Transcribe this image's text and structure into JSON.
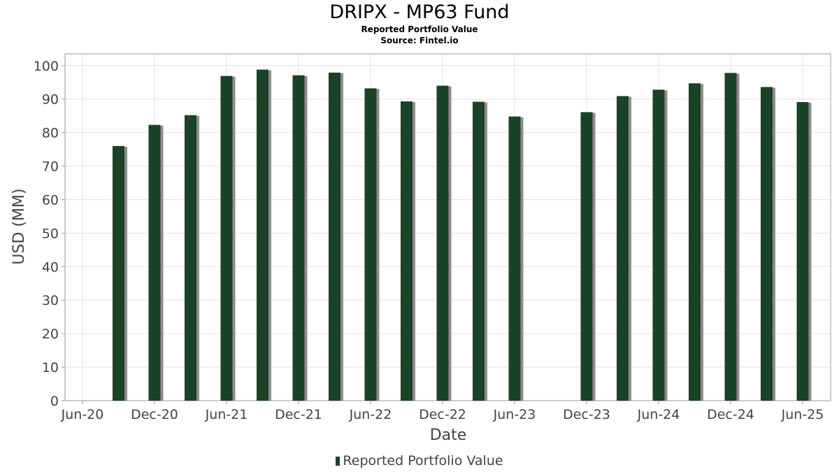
{
  "chart_data": {
    "type": "bar",
    "title": "DRIPX - MP63 Fund",
    "subtitle": "Reported Portfolio Value",
    "source": "Source: Fintel.io",
    "xlabel": "Date",
    "ylabel": "USD (MM)",
    "x_ticks": [
      "Jun-20",
      "Dec-20",
      "Jun-21",
      "Dec-21",
      "Jun-22",
      "Dec-22",
      "Jun-23",
      "Dec-23",
      "Jun-24",
      "Dec-24",
      "Jun-25"
    ],
    "y_ticks": [
      0,
      10,
      20,
      30,
      40,
      50,
      60,
      70,
      80,
      90,
      100
    ],
    "ylim": [
      0,
      103.5
    ],
    "grid": true,
    "legend": "bottom",
    "series": [
      {
        "name": "Reported Portfolio Value",
        "color": "#1a4224",
        "points": [
          {
            "date": "2020-09",
            "value": 76.0
          },
          {
            "date": "2020-12",
            "value": 82.3
          },
          {
            "date": "2021-03",
            "value": 85.2
          },
          {
            "date": "2021-06",
            "value": 96.9
          },
          {
            "date": "2021-09",
            "value": 98.8
          },
          {
            "date": "2021-12",
            "value": 97.1
          },
          {
            "date": "2022-03",
            "value": 97.9
          },
          {
            "date": "2022-06",
            "value": 93.2
          },
          {
            "date": "2022-09",
            "value": 89.3
          },
          {
            "date": "2022-12",
            "value": 94.0
          },
          {
            "date": "2023-03",
            "value": 89.2
          },
          {
            "date": "2023-06",
            "value": 84.8
          },
          {
            "date": "2023-12",
            "value": 86.1
          },
          {
            "date": "2024-03",
            "value": 90.9
          },
          {
            "date": "2024-06",
            "value": 92.8
          },
          {
            "date": "2024-09",
            "value": 94.7
          },
          {
            "date": "2024-12",
            "value": 97.8
          },
          {
            "date": "2025-03",
            "value": 93.6
          },
          {
            "date": "2025-06",
            "value": 89.1
          }
        ]
      }
    ]
  }
}
